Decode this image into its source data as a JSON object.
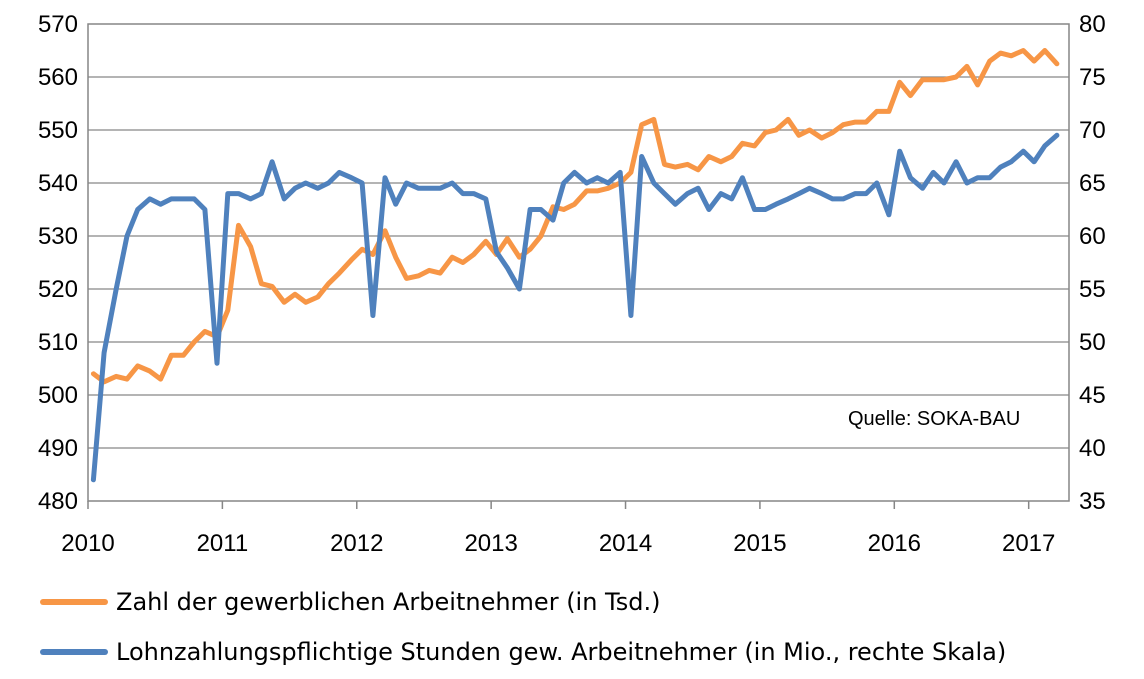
{
  "chart_data": {
    "type": "line",
    "source_note": "Quelle: SOKA-BAU",
    "x_ticks": [
      "2010",
      "2011",
      "2012",
      "2013",
      "2014",
      "2015",
      "2016",
      "2017"
    ],
    "xlim": [
      2010.0,
      2017.3
    ],
    "y_left": {
      "lim": [
        480,
        570
      ],
      "ticks": [
        "480",
        "490",
        "500",
        "510",
        "520",
        "530",
        "540",
        "550",
        "560",
        "570"
      ]
    },
    "y_right": {
      "lim": [
        35,
        80
      ],
      "ticks": [
        "35",
        "40",
        "45",
        "50",
        "55",
        "60",
        "65",
        "70",
        "75",
        "80"
      ]
    },
    "grid": "horizontal",
    "legend_position": "bottom",
    "series": [
      {
        "name": "Zahl der gewerblichen Arbeitnehmer (in Tsd.)",
        "color": "#F79646",
        "axis": "left",
        "x": [
          2010.04,
          2010.12,
          2010.21,
          2010.29,
          2010.37,
          2010.46,
          2010.54,
          2010.62,
          2010.71,
          2010.79,
          2010.87,
          2010.96,
          2011.04,
          2011.12,
          2011.21,
          2011.29,
          2011.37,
          2011.46,
          2011.54,
          2011.62,
          2011.71,
          2011.79,
          2011.87,
          2011.96,
          2012.04,
          2012.12,
          2012.21,
          2012.29,
          2012.37,
          2012.46,
          2012.54,
          2012.62,
          2012.71,
          2012.79,
          2012.87,
          2012.96,
          2013.04,
          2013.12,
          2013.21,
          2013.29,
          2013.37,
          2013.46,
          2013.54,
          2013.62,
          2013.71,
          2013.79,
          2013.87,
          2013.96,
          2014.04,
          2014.12,
          2014.21,
          2014.29,
          2014.37,
          2014.46,
          2014.54,
          2014.62,
          2014.71,
          2014.79,
          2014.87,
          2014.96,
          2015.04,
          2015.12,
          2015.21,
          2015.29,
          2015.37,
          2015.46,
          2015.54,
          2015.62,
          2015.71,
          2015.79,
          2015.87,
          2015.96,
          2016.04,
          2016.12,
          2016.21,
          2016.29,
          2016.37,
          2016.46,
          2016.54,
          2016.62,
          2016.71,
          2016.79,
          2016.87,
          2016.96,
          2017.04,
          2017.12,
          2017.21
        ],
        "values": [
          504,
          502.5,
          503.5,
          503,
          505.5,
          504.5,
          503,
          507.5,
          507.5,
          510,
          512,
          511,
          516,
          532,
          528,
          521,
          520.5,
          517.5,
          519,
          517.5,
          518.5,
          521,
          523,
          525.5,
          527.5,
          526.5,
          531,
          526,
          522,
          522.5,
          523.5,
          523,
          526,
          525,
          526.5,
          529,
          526.5,
          529.5,
          526,
          527.5,
          530,
          535.5,
          535,
          536,
          538.5,
          538.5,
          539,
          540,
          542,
          551,
          552,
          543.5,
          543,
          543.5,
          542.5,
          545,
          544,
          545,
          547.5,
          547,
          549.5,
          550,
          552,
          549,
          550,
          548.5,
          549.5,
          551,
          551.5,
          551.5,
          553.5,
          553.5,
          559,
          556.5,
          559.5,
          559.5,
          559.5,
          560,
          562,
          558.5,
          563,
          564.5,
          564,
          565,
          563,
          565,
          562.5
        ]
      },
      {
        "name": "Lohnzahlungspflichtige Stunden gew. Arbeitnehmer (in Mio., rechte Skala)",
        "color": "#4F81BD",
        "axis": "right",
        "x": [
          2010.04,
          2010.12,
          2010.21,
          2010.29,
          2010.37,
          2010.46,
          2010.54,
          2010.62,
          2010.71,
          2010.79,
          2010.87,
          2010.96,
          2011.04,
          2011.12,
          2011.21,
          2011.29,
          2011.37,
          2011.46,
          2011.54,
          2011.62,
          2011.71,
          2011.79,
          2011.87,
          2011.96,
          2012.04,
          2012.12,
          2012.21,
          2012.29,
          2012.37,
          2012.46,
          2012.54,
          2012.62,
          2012.71,
          2012.79,
          2012.87,
          2012.96,
          2013.04,
          2013.12,
          2013.21,
          2013.29,
          2013.37,
          2013.46,
          2013.54,
          2013.62,
          2013.71,
          2013.79,
          2013.87,
          2013.96,
          2014.04,
          2014.12,
          2014.21,
          2014.29,
          2014.37,
          2014.46,
          2014.54,
          2014.62,
          2014.71,
          2014.79,
          2014.87,
          2014.96,
          2015.04,
          2015.12,
          2015.21,
          2015.29,
          2015.37,
          2015.46,
          2015.54,
          2015.62,
          2015.71,
          2015.79,
          2015.87,
          2015.96,
          2016.04,
          2016.12,
          2016.21,
          2016.29,
          2016.37,
          2016.46,
          2016.54,
          2016.62,
          2016.71,
          2016.79,
          2016.87,
          2016.96,
          2017.04,
          2017.12,
          2017.21
        ],
        "values": [
          37,
          49,
          55,
          60,
          62.5,
          63.5,
          63,
          63.5,
          63.5,
          63.5,
          62.5,
          48,
          64,
          64,
          63.5,
          64,
          67,
          63.5,
          64.5,
          65,
          64.5,
          65,
          66,
          65.5,
          65,
          52.5,
          65.5,
          63,
          65,
          64.5,
          64.5,
          64.5,
          65,
          64,
          64,
          63.5,
          58.5,
          57,
          55,
          62.5,
          62.5,
          61.5,
          65,
          66,
          65,
          65.5,
          65,
          66,
          52.5,
          67.5,
          65,
          64,
          63,
          64,
          64.5,
          62.5,
          64,
          63.5,
          65.5,
          62.5,
          62.5,
          63,
          63.5,
          64,
          64.5,
          64,
          63.5,
          63.5,
          64,
          64,
          65,
          62,
          68,
          65.5,
          64.5,
          66,
          65,
          67,
          65,
          65.5,
          65.5,
          66.5,
          67,
          68,
          67,
          68.5,
          69.5
        ]
      }
    ]
  }
}
